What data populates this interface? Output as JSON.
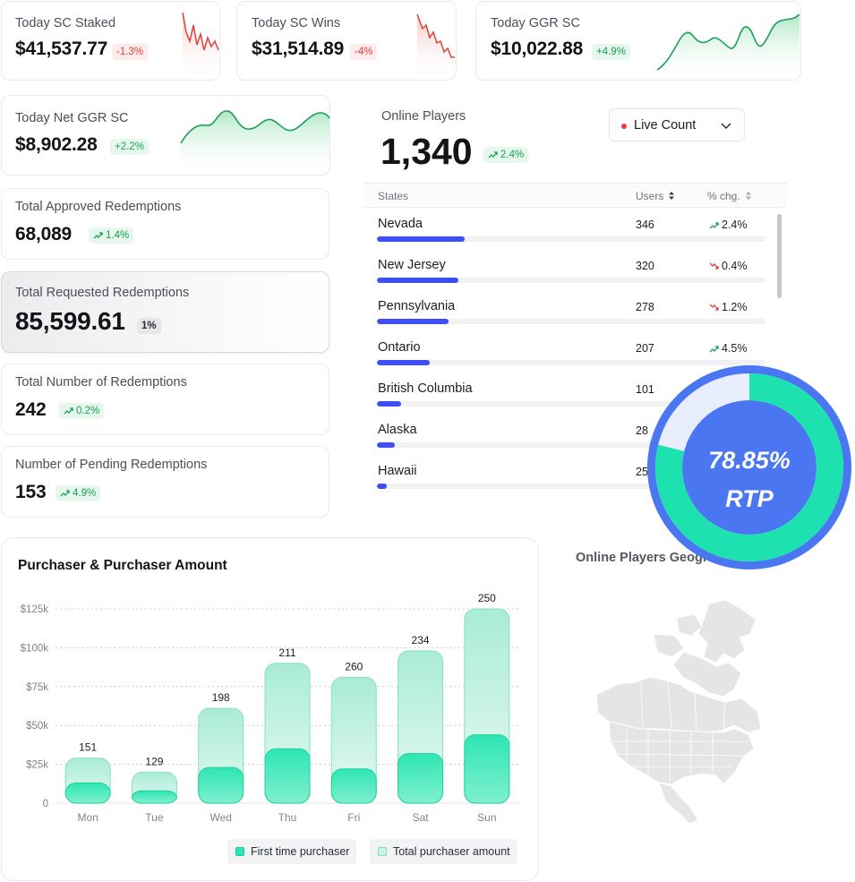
{
  "kpis": {
    "sc_staked": {
      "label": "Today SC Staked",
      "value": "$41,537.77",
      "change": "-1.3%"
    },
    "sc_wins": {
      "label": "Today SC Wins",
      "value": "$31,514.89",
      "change": "-4%"
    },
    "ggr": {
      "label": "Today GGR SC",
      "value": "$10,022.88",
      "change": "+4.9%"
    },
    "net_ggr": {
      "label": "Today Net GGR SC",
      "value": "$8,902.28",
      "change": "+2.2%"
    },
    "approved": {
      "label": "Total Approved Redemptions",
      "value": "68,089",
      "change": "1.4%"
    },
    "requested": {
      "label": "Total Requested Redemptions",
      "value": "85,599.61",
      "change": "1%"
    },
    "number": {
      "label": "Total Number of Redemptions",
      "value": "242",
      "change": "0.2%"
    },
    "pending": {
      "label": "Number of Pending Redemptions",
      "value": "153",
      "change": "4.9%"
    }
  },
  "online": {
    "title": "Online Players",
    "count": "1,340",
    "change": "2.4%",
    "select": {
      "label": "Live Count"
    },
    "columns": {
      "state": "States",
      "users": "Users",
      "pct": "% chg."
    },
    "rows": [
      {
        "name": "Nevada",
        "users": "346",
        "pct": "2.4%",
        "trend": "up",
        "share": 0.225
      },
      {
        "name": "New Jersey",
        "users": "320",
        "pct": "0.4%",
        "trend": "down",
        "share": 0.21
      },
      {
        "name": "Pennsylvania",
        "users": "278",
        "pct": "1.2%",
        "trend": "down",
        "share": 0.185
      },
      {
        "name": "Ontario",
        "users": "207",
        "pct": "4.5%",
        "trend": "up",
        "share": 0.137
      },
      {
        "name": "British Columbia",
        "users": "101",
        "pct": "",
        "trend": "",
        "share": 0.062
      },
      {
        "name": "Alaska",
        "users": "28",
        "pct": "",
        "trend": "",
        "share": 0.045
      },
      {
        "name": "Hawaii",
        "users": "25",
        "pct": "",
        "trend": "",
        "share": 0.026
      }
    ]
  },
  "rtp": {
    "value": "78.85%",
    "label": "RTP",
    "fraction": 0.7885
  },
  "map": {
    "title": "Online Players Geogra"
  },
  "chart_data": {
    "type": "bar",
    "title": "Purchaser & Purchaser Amount",
    "categories": [
      "Mon",
      "Tue",
      "Wed",
      "Thu",
      "Fri",
      "Sat",
      "Sun"
    ],
    "y_ticks": [
      "0",
      "$25k",
      "$50k",
      "$75k",
      "$100k",
      "$125k"
    ],
    "ylim": [
      0,
      125000
    ],
    "series": [
      {
        "name": "Total purchaser amount",
        "values": [
          29000,
          20000,
          61000,
          90000,
          81000,
          98000,
          125000
        ]
      },
      {
        "name": "First time purchaser",
        "values": [
          13000,
          8000,
          23000,
          35000,
          22000,
          32000,
          44000
        ]
      }
    ],
    "data_labels": [
      "151",
      "129",
      "198",
      "211",
      "260",
      "234",
      "250"
    ],
    "legend_position": "bottom-right",
    "grid": true
  },
  "colors": {
    "accent": "#3f4ff2",
    "green": "#1aa056",
    "red": "#e0413b",
    "teal": "#1de2b0",
    "rtp_blue": "#4a76f2"
  }
}
